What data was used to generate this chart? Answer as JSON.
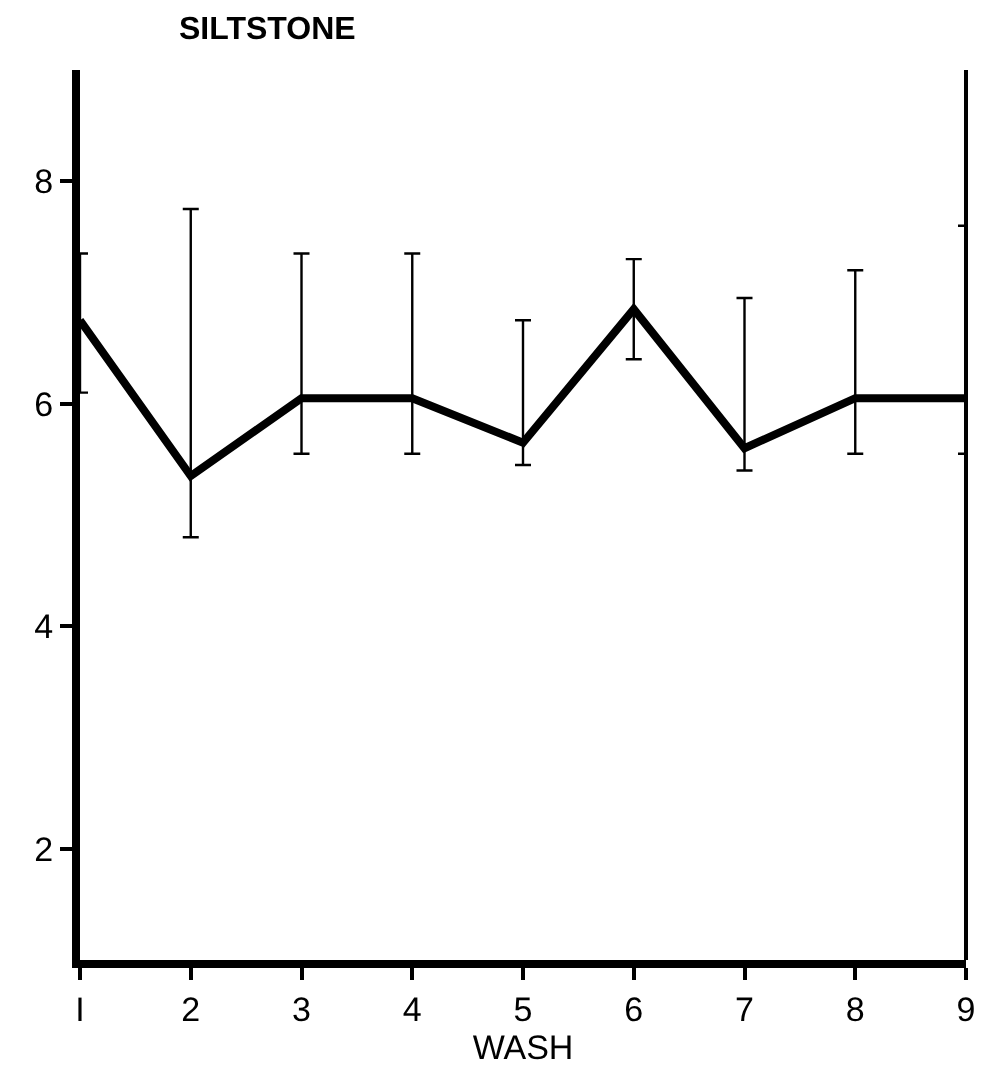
{
  "chart_data": {
    "type": "line",
    "title": "SILTSTONE",
    "xlabel": "WASH",
    "x": [
      1,
      2,
      3,
      4,
      5,
      6,
      7,
      8,
      9
    ],
    "series": [
      {
        "color": "#000000",
        "values": [
          6.75,
          5.35,
          6.05,
          6.05,
          5.65,
          6.85,
          5.6,
          6.05,
          6.05
        ],
        "errors": [
          [
            6.1,
            7.35
          ],
          [
            4.8,
            7.75
          ],
          [
            5.55,
            7.35
          ],
          [
            5.55,
            7.35
          ],
          [
            5.45,
            6.75
          ],
          [
            6.4,
            7.3
          ],
          [
            5.4,
            6.95
          ],
          [
            5.55,
            7.2
          ],
          [
            5.55,
            7.6
          ]
        ]
      }
    ],
    "xlim": [
      1,
      9
    ],
    "xticks": [
      {
        "value": 1,
        "label": "I"
      },
      2,
      3,
      4,
      5,
      6,
      7,
      8,
      9
    ],
    "ylim": [
      1,
      9
    ],
    "yticks": [
      2,
      4,
      6,
      8
    ],
    "marker": "none",
    "line_style": "solid"
  }
}
